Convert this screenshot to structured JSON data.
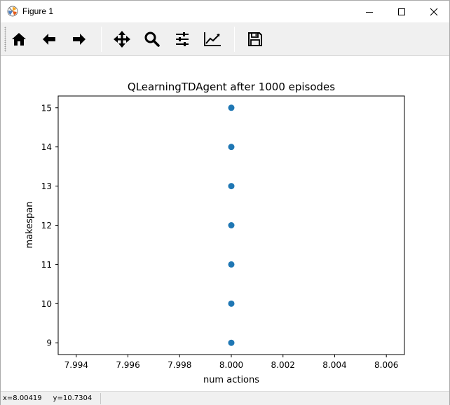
{
  "window": {
    "title": "Figure 1"
  },
  "toolbar": {
    "buttons": [
      {
        "name": "home",
        "icon": "home-icon"
      },
      {
        "name": "back",
        "icon": "arrow-left-icon"
      },
      {
        "name": "forward",
        "icon": "arrow-right-icon"
      },
      {
        "name": "pan",
        "icon": "move-icon"
      },
      {
        "name": "zoom",
        "icon": "magnifier-icon"
      },
      {
        "name": "configure-subplots",
        "icon": "sliders-icon"
      },
      {
        "name": "edit-axis",
        "icon": "line-chart-icon"
      },
      {
        "name": "save",
        "icon": "floppy-disk-icon"
      }
    ]
  },
  "chart_data": {
    "type": "scatter",
    "title": "QLearningTDAgent after 1000 episodes",
    "xlabel": "num actions",
    "ylabel": "makespan",
    "xlim": [
      7.9933,
      8.0067
    ],
    "ylim": [
      8.7,
      15.3
    ],
    "xticks": [
      "7.994",
      "7.996",
      "7.998",
      "8.000",
      "8.002",
      "8.004",
      "8.006"
    ],
    "xtick_values": [
      7.994,
      7.996,
      7.998,
      8.0,
      8.002,
      8.004,
      8.006
    ],
    "yticks": [
      "9",
      "10",
      "11",
      "12",
      "13",
      "14",
      "15"
    ],
    "ytick_values": [
      9,
      10,
      11,
      12,
      13,
      14,
      15
    ],
    "grid": false,
    "marker_color": "#1f77b4",
    "points": [
      {
        "x": 8.0,
        "y": 9
      },
      {
        "x": 8.0,
        "y": 10
      },
      {
        "x": 8.0,
        "y": 11
      },
      {
        "x": 8.0,
        "y": 12
      },
      {
        "x": 8.0,
        "y": 13
      },
      {
        "x": 8.0,
        "y": 14
      },
      {
        "x": 8.0,
        "y": 15
      }
    ]
  },
  "status": {
    "text": "x=8.00419     y=10.7304"
  }
}
